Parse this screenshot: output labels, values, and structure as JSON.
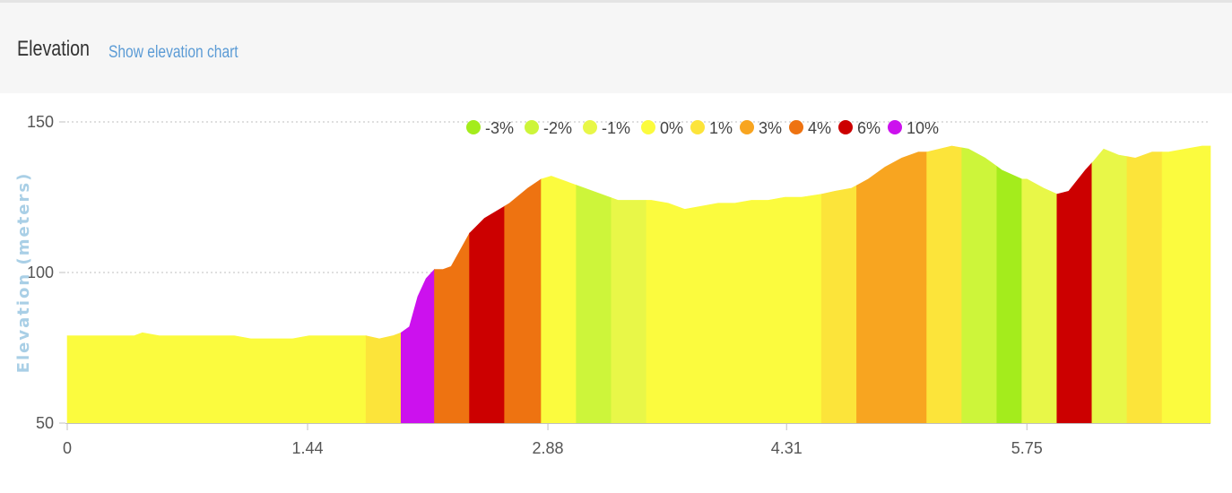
{
  "header": {
    "title": "Elevation",
    "link_label": "Show elevation chart"
  },
  "chart_data": {
    "type": "area",
    "title": "",
    "ylabel": "Elevation (meters)",
    "xlabel": "",
    "ylim": [
      50,
      150
    ],
    "yticks": [
      50,
      100,
      150
    ],
    "xlim": [
      0,
      6.85
    ],
    "xticks": [
      0,
      1.44,
      2.88,
      4.31,
      5.75
    ],
    "xtick_labels": [
      "0",
      "1.44",
      "2.88",
      "4.31",
      "5.75"
    ],
    "grid": "horizontal dotted",
    "legend_placement": "top-center",
    "legend": [
      {
        "label": "-3%",
        "color": "#a4ec1c"
      },
      {
        "label": "-2%",
        "color": "#cdf53a"
      },
      {
        "label": "-1%",
        "color": "#e8f748"
      },
      {
        "label": "0%",
        "color": "#fbfb3e"
      },
      {
        "label": "1%",
        "color": "#fce43a"
      },
      {
        "label": "3%",
        "color": "#f8a520"
      },
      {
        "label": "4%",
        "color": "#ee7311"
      },
      {
        "label": "6%",
        "color": "#cc0000"
      },
      {
        "label": "10%",
        "color": "#cc11ee"
      }
    ],
    "profile": [
      [
        0.0,
        79
      ],
      [
        0.4,
        79
      ],
      [
        0.45,
        80
      ],
      [
        0.55,
        79
      ],
      [
        1.0,
        79
      ],
      [
        1.1,
        78
      ],
      [
        1.35,
        78
      ],
      [
        1.45,
        79
      ],
      [
        1.79,
        79
      ],
      [
        1.87,
        78
      ],
      [
        1.95,
        79
      ],
      [
        2.0,
        80
      ],
      [
        2.05,
        82
      ],
      [
        2.1,
        92
      ],
      [
        2.15,
        98
      ],
      [
        2.2,
        101
      ],
      [
        2.25,
        101
      ],
      [
        2.3,
        102
      ],
      [
        2.35,
        107
      ],
      [
        2.41,
        113
      ],
      [
        2.5,
        118
      ],
      [
        2.62,
        122
      ],
      [
        2.65,
        123
      ],
      [
        2.76,
        128
      ],
      [
        2.84,
        131
      ],
      [
        2.9,
        132
      ],
      [
        3.0,
        130
      ],
      [
        3.1,
        128
      ],
      [
        3.2,
        126
      ],
      [
        3.3,
        124
      ],
      [
        3.4,
        124
      ],
      [
        3.5,
        124
      ],
      [
        3.6,
        123
      ],
      [
        3.7,
        121
      ],
      [
        3.8,
        122
      ],
      [
        3.9,
        123
      ],
      [
        4.0,
        123
      ],
      [
        4.1,
        124
      ],
      [
        4.2,
        124
      ],
      [
        4.3,
        125
      ],
      [
        4.4,
        125
      ],
      [
        4.52,
        126
      ],
      [
        4.6,
        127
      ],
      [
        4.7,
        128
      ],
      [
        4.8,
        131
      ],
      [
        4.9,
        135
      ],
      [
        5.0,
        138
      ],
      [
        5.1,
        140
      ],
      [
        5.15,
        140
      ],
      [
        5.3,
        142
      ],
      [
        5.4,
        141
      ],
      [
        5.5,
        138
      ],
      [
        5.6,
        134
      ],
      [
        5.72,
        131
      ],
      [
        5.75,
        131
      ],
      [
        5.85,
        128
      ],
      [
        5.93,
        126
      ],
      [
        6.0,
        127
      ],
      [
        6.1,
        134
      ],
      [
        6.15,
        137
      ],
      [
        6.21,
        141
      ],
      [
        6.3,
        139
      ],
      [
        6.4,
        138
      ],
      [
        6.5,
        140
      ],
      [
        6.6,
        140
      ],
      [
        6.7,
        141
      ],
      [
        6.8,
        142
      ],
      [
        6.85,
        142
      ]
    ],
    "segments": [
      {
        "from": 0.0,
        "to": 1.79,
        "grade": "0%"
      },
      {
        "from": 1.79,
        "to": 2.0,
        "grade": "1%"
      },
      {
        "from": 2.0,
        "to": 2.2,
        "grade": "10%"
      },
      {
        "from": 2.2,
        "to": 2.41,
        "grade": "4%"
      },
      {
        "from": 2.41,
        "to": 2.62,
        "grade": "6%"
      },
      {
        "from": 2.62,
        "to": 2.84,
        "grade": "4%"
      },
      {
        "from": 2.84,
        "to": 3.05,
        "grade": "0%"
      },
      {
        "from": 3.05,
        "to": 3.26,
        "grade": "-2%"
      },
      {
        "from": 3.26,
        "to": 3.47,
        "grade": "-1%"
      },
      {
        "from": 3.47,
        "to": 4.52,
        "grade": "0%"
      },
      {
        "from": 4.52,
        "to": 4.73,
        "grade": "1%"
      },
      {
        "from": 4.73,
        "to": 5.15,
        "grade": "3%"
      },
      {
        "from": 5.15,
        "to": 5.36,
        "grade": "1%"
      },
      {
        "from": 5.36,
        "to": 5.57,
        "grade": "-2%"
      },
      {
        "from": 5.57,
        "to": 5.72,
        "grade": "-3%"
      },
      {
        "from": 5.72,
        "to": 5.93,
        "grade": "-1%"
      },
      {
        "from": 5.93,
        "to": 6.14,
        "grade": "6%"
      },
      {
        "from": 6.14,
        "to": 6.35,
        "grade": "-1%"
      },
      {
        "from": 6.35,
        "to": 6.56,
        "grade": "1%"
      },
      {
        "from": 6.56,
        "to": 6.85,
        "grade": "0%"
      }
    ]
  }
}
